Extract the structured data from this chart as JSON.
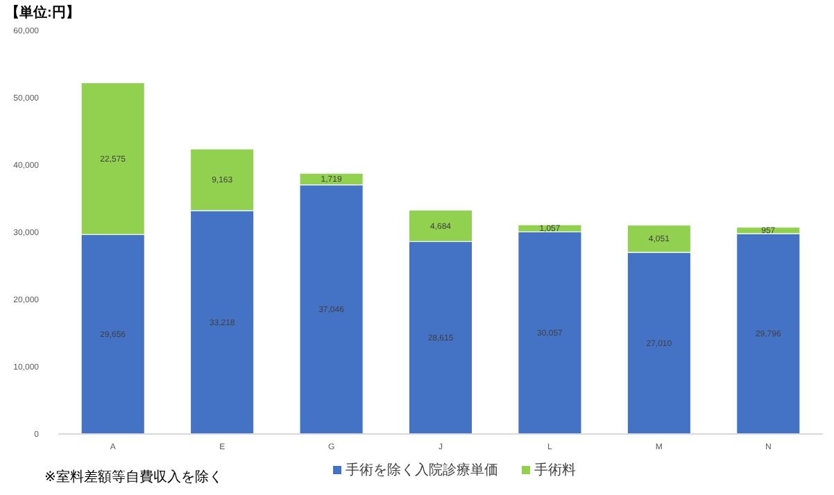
{
  "chart_data": {
    "type": "bar",
    "title": "【単位:円】",
    "annotations": [
      "※室料差額等自費収入を除く"
    ],
    "categories": [
      "A",
      "E",
      "G",
      "J",
      "L",
      "M",
      "N"
    ],
    "stacked": true,
    "legend": "bottom",
    "grid": false,
    "series": [
      {
        "name": "手術を除く入院診療単価",
        "color": "#4472c4",
        "values": [
          29656,
          33218,
          37046,
          28615,
          30057,
          27010,
          29796
        ],
        "value_labels": [
          "29,656",
          "33,218",
          "37,046",
          "28,615",
          "30,057",
          "27,010",
          "29,796"
        ]
      },
      {
        "name": "手術料",
        "color": "#92d050",
        "values": [
          22575,
          9163,
          1719,
          4684,
          1057,
          4051,
          957
        ],
        "value_labels": [
          "22,575",
          "9,163",
          "1,719",
          "4,684",
          "1,057",
          "4,051",
          "957"
        ]
      }
    ],
    "ylim": [
      0,
      60000
    ],
    "yticks": [
      {
        "value": 0,
        "label": "0"
      },
      {
        "value": 10000,
        "label": "10,000"
      },
      {
        "value": 20000,
        "label": "20,000"
      },
      {
        "value": 30000,
        "label": "30,000"
      },
      {
        "value": 40000,
        "label": "40,000"
      },
      {
        "value": 50000,
        "label": "50,000"
      },
      {
        "value": 60000,
        "label": "60,000"
      }
    ]
  }
}
